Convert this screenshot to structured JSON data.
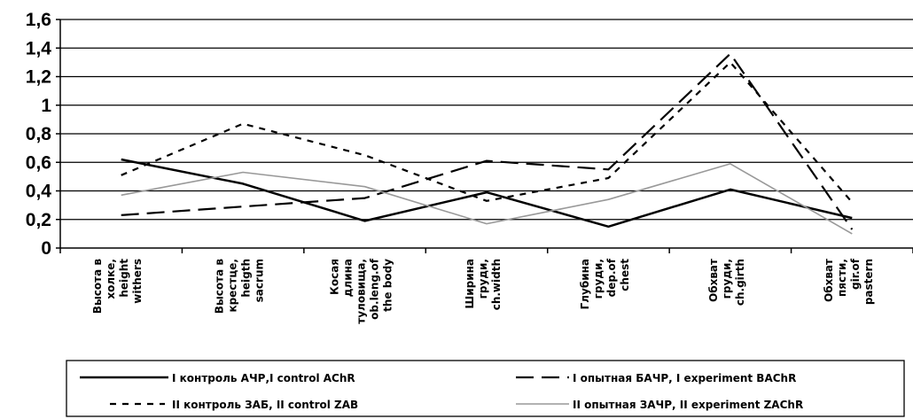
{
  "chart_data": {
    "type": "line",
    "categories": [
      [
        "Высота в",
        "холке,",
        "height",
        "withers"
      ],
      [
        "Высота в",
        "крестце,",
        "heigth",
        "sacrum"
      ],
      [
        "Косая",
        "длина",
        "туловища,",
        "ob.leng.of",
        "the body"
      ],
      [
        "Ширина",
        "груди,",
        "ch.width"
      ],
      [
        "Глубина",
        "груди,",
        "dep.of",
        "chest"
      ],
      [
        "Обхват",
        "груди,",
        "ch.girth"
      ],
      [
        "Обхват",
        "пясти,",
        "gir.of",
        "pastern"
      ]
    ],
    "ylim": [
      0,
      1.6
    ],
    "yticks": [
      "0",
      "0,2",
      "0,4",
      "0,6",
      "0,8",
      "1",
      "1,2",
      "1,4",
      "1,6"
    ],
    "grid": true,
    "legend_position": "bottom",
    "series": [
      {
        "name": "I контроль АЧР,I control AChR",
        "style": "solid",
        "color": "#000000",
        "values": [
          0.62,
          0.45,
          0.19,
          0.39,
          0.15,
          0.41,
          0.21
        ]
      },
      {
        "name": "I опытная БАЧР, I experiment BAChR",
        "style": "long-dash",
        "color": "#000000",
        "values": [
          0.23,
          0.29,
          0.35,
          0.61,
          0.55,
          1.36,
          0.13
        ]
      },
      {
        "name": "II контроль ЗАБ, II control ZAB",
        "style": "short-dash",
        "color": "#000000",
        "values": [
          0.51,
          0.87,
          0.65,
          0.33,
          0.49,
          1.3,
          0.32
        ]
      },
      {
        "name": "II опытная ЗАЧР, II experiment ZAChR",
        "style": "thin-gray",
        "color": "#999999",
        "values": [
          0.37,
          0.53,
          0.43,
          0.17,
          0.34,
          0.59,
          0.1
        ]
      }
    ]
  }
}
